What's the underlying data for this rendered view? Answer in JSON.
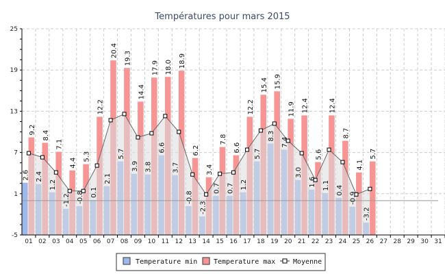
{
  "chart_data": {
    "type": "bar",
    "title": "Températures pour mars 2015",
    "xlabel": "",
    "ylabel": "",
    "ylim": [
      -5,
      25
    ],
    "yticks": [
      -5,
      1,
      7,
      13,
      19,
      25
    ],
    "grid": true,
    "legend_position": "bottom",
    "categories": [
      "01",
      "02",
      "03",
      "04",
      "05",
      "06",
      "07",
      "08",
      "09",
      "10",
      "11",
      "12",
      "13",
      "14",
      "15",
      "16",
      "17",
      "18",
      "19",
      "20",
      "21",
      "22",
      "23",
      "24",
      "25",
      "26",
      "27",
      "28",
      "29",
      "30",
      "31"
    ],
    "series": [
      {
        "name": "Temperature min",
        "type": "bar",
        "color": "#9db8ea",
        "values": [
          2.6,
          2.4,
          1.2,
          -1.2,
          -0.8,
          0.1,
          2.1,
          5.7,
          3.9,
          3.8,
          6.6,
          3.7,
          -0.8,
          -2.3,
          0.7,
          0.7,
          1.2,
          5.7,
          8.3,
          7.4,
          3.0,
          1.6,
          1.1,
          0.4,
          -0.9,
          -3.2,
          null,
          null,
          null,
          null,
          null
        ]
      },
      {
        "name": "Temperature max",
        "type": "bar",
        "color": "#f79595",
        "values": [
          9.2,
          8.4,
          7.1,
          4.4,
          5.3,
          12.2,
          20.4,
          19.3,
          14.4,
          17.9,
          18.0,
          18.9,
          6.2,
          3.4,
          7.8,
          6.6,
          12.2,
          15.4,
          15.9,
          11.9,
          12.4,
          5.6,
          12.4,
          8.7,
          4.1,
          5.7,
          null,
          null,
          null,
          null,
          null
        ]
      },
      {
        "name": "Moyenne",
        "type": "line",
        "color": "#666666",
        "values": [
          6.9,
          6.3,
          4.1,
          1.4,
          1.4,
          5.1,
          11.7,
          12.6,
          9.2,
          9.8,
          12.3,
          10.0,
          3.8,
          0.9,
          3.9,
          4.1,
          7.4,
          10.2,
          11.2,
          8.7,
          6.9,
          3.0,
          7.4,
          5.6,
          0.9,
          1.7,
          null,
          null,
          null,
          null,
          null
        ]
      }
    ]
  }
}
